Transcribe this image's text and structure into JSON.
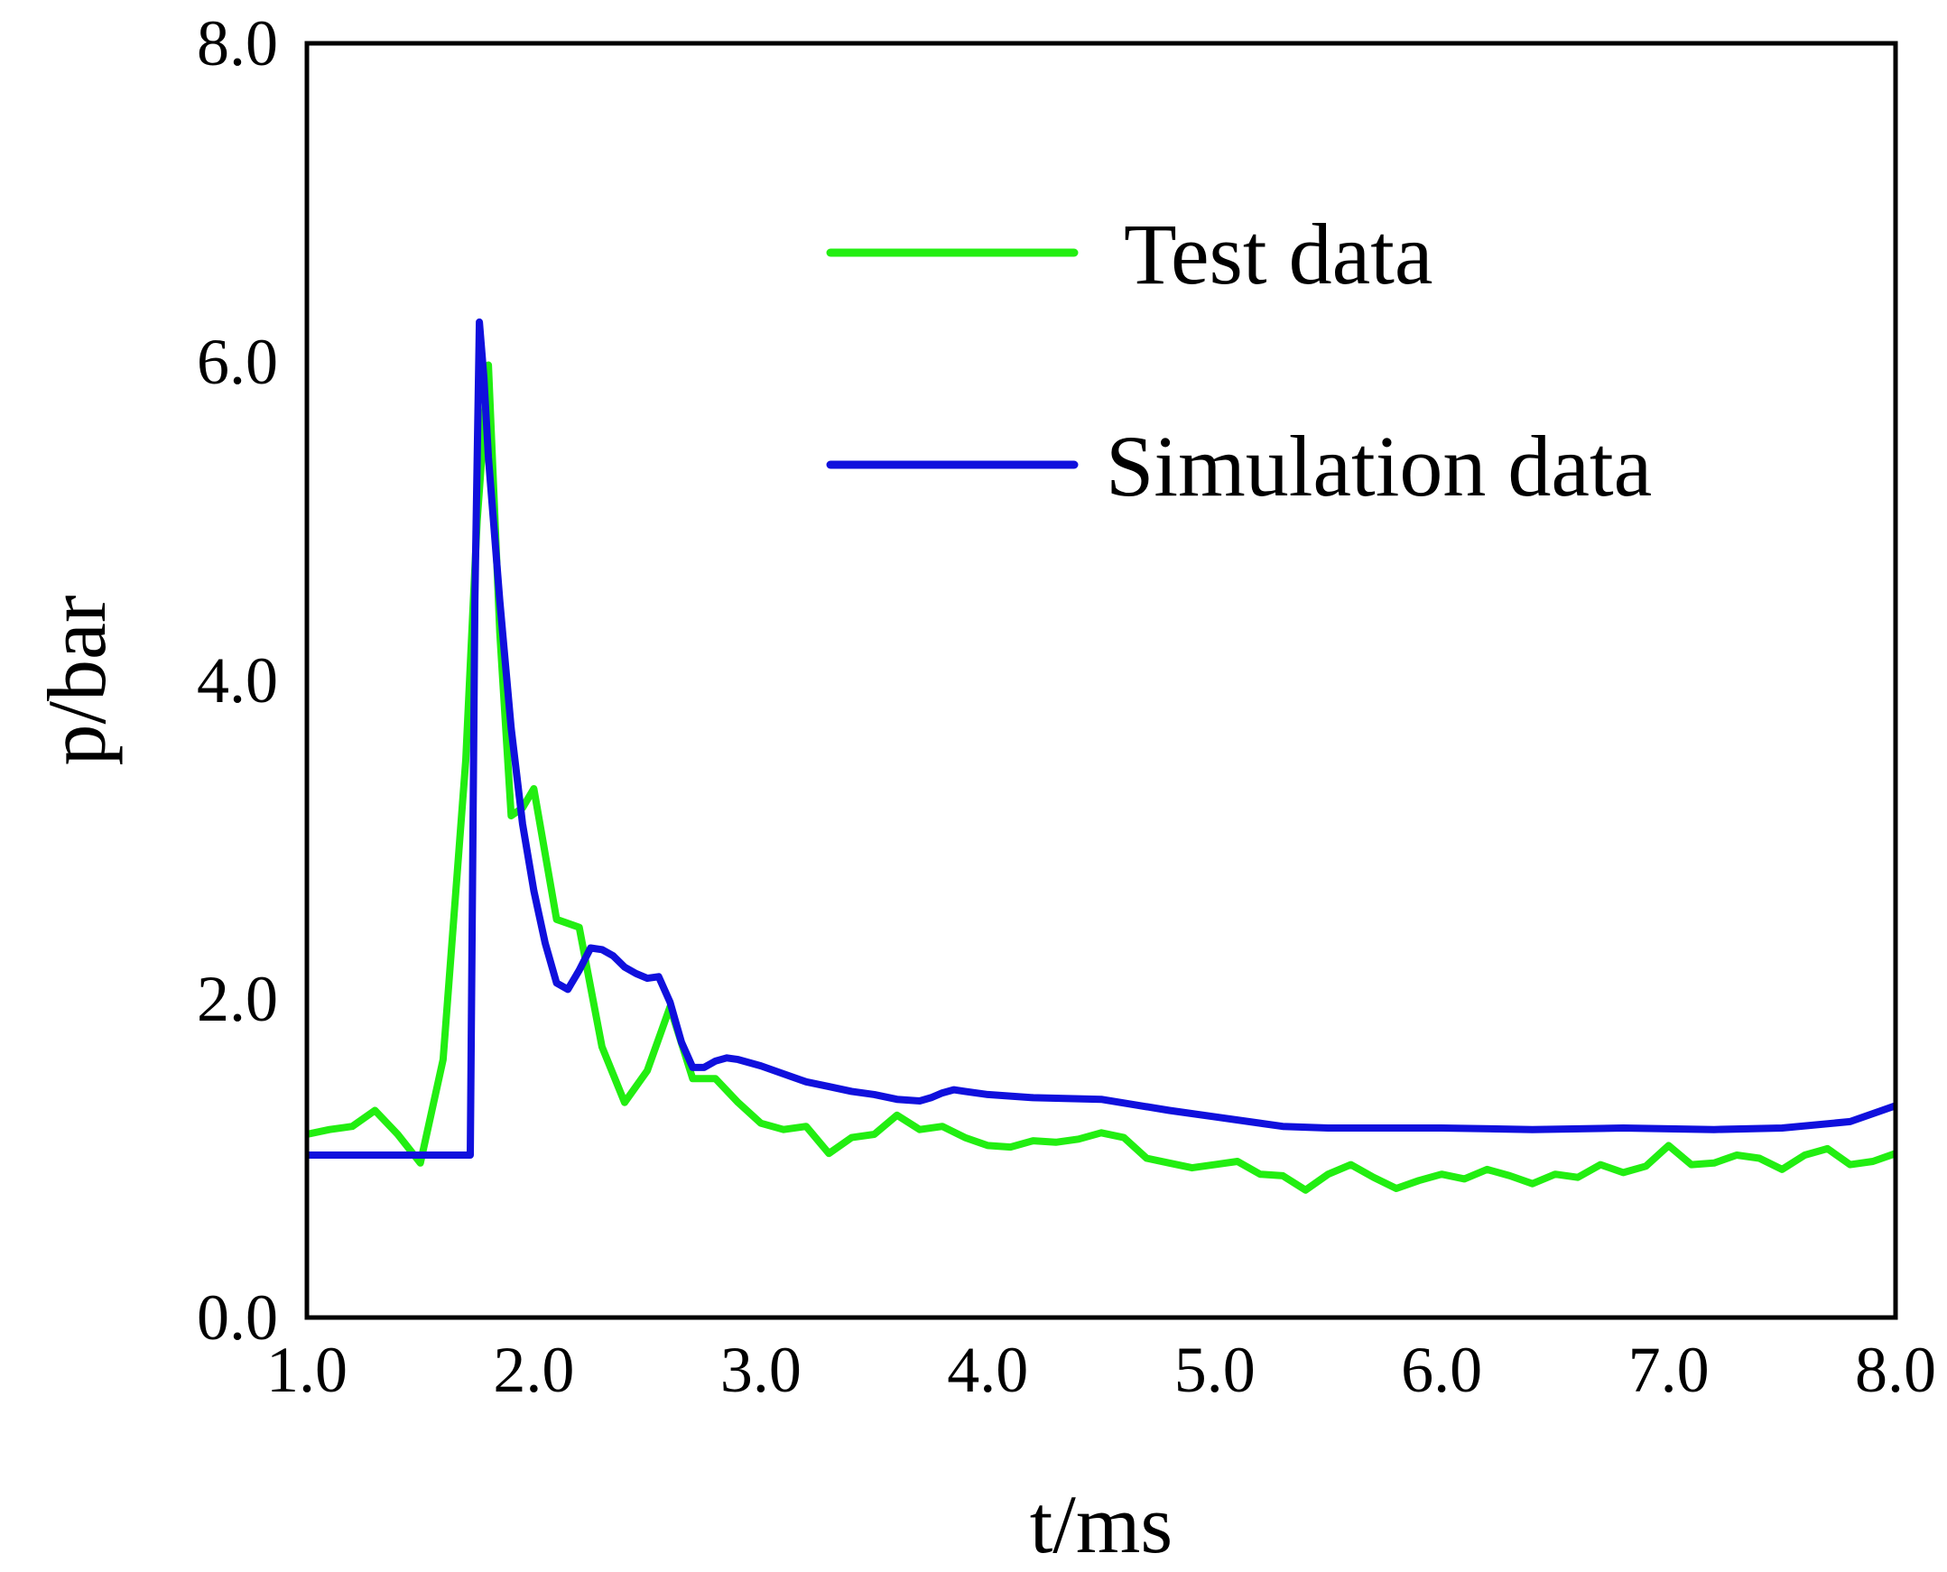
{
  "chart_data": {
    "type": "line",
    "title": "",
    "xlabel": "t/ms",
    "ylabel": "p/bar",
    "xlim": [
      1.0,
      8.0
    ],
    "ylim": [
      0.0,
      8.0
    ],
    "xticks": [
      "1.0",
      "2.0",
      "3.0",
      "4.0",
      "5.0",
      "6.0",
      "7.0",
      "8.0"
    ],
    "yticks": [
      "0.0",
      "2.0",
      "4.0",
      "6.0",
      "8.0"
    ],
    "grid": false,
    "legend_position": "top-right",
    "series": [
      {
        "name": "Test data",
        "color": "#22ee11",
        "x": [
          1.0,
          1.1,
          1.2,
          1.3,
          1.4,
          1.5,
          1.6,
          1.7,
          1.75,
          1.8,
          1.85,
          1.9,
          1.95,
          2.0,
          2.1,
          2.2,
          2.3,
          2.4,
          2.5,
          2.6,
          2.7,
          2.8,
          2.9,
          3.0,
          3.1,
          3.2,
          3.3,
          3.4,
          3.5,
          3.6,
          3.7,
          3.8,
          3.9,
          4.0,
          4.1,
          4.2,
          4.3,
          4.4,
          4.5,
          4.6,
          4.7,
          4.8,
          4.9,
          5.0,
          5.1,
          5.2,
          5.3,
          5.4,
          5.5,
          5.6,
          5.7,
          5.8,
          5.9,
          6.0,
          6.1,
          6.2,
          6.3,
          6.4,
          6.5,
          6.6,
          6.7,
          6.8,
          6.9,
          7.0,
          7.1,
          7.2,
          7.3,
          7.4,
          7.5,
          7.6,
          7.7,
          7.8,
          7.9,
          8.0
        ],
        "y": [
          1.15,
          1.18,
          1.2,
          1.3,
          1.15,
          0.97,
          1.62,
          3.5,
          5.0,
          5.98,
          4.3,
          3.15,
          3.2,
          3.32,
          2.5,
          2.45,
          1.7,
          1.35,
          1.55,
          1.95,
          1.5,
          1.5,
          1.35,
          1.22,
          1.18,
          1.2,
          1.03,
          1.13,
          1.15,
          1.27,
          1.18,
          1.2,
          1.13,
          1.08,
          1.07,
          1.11,
          1.1,
          1.12,
          1.16,
          1.13,
          1.0,
          0.97,
          0.94,
          0.96,
          0.98,
          0.9,
          0.89,
          0.8,
          0.9,
          0.96,
          0.88,
          0.81,
          0.86,
          0.9,
          0.87,
          0.93,
          0.89,
          0.84,
          0.9,
          0.88,
          0.96,
          0.91,
          0.95,
          1.08,
          0.96,
          0.97,
          1.02,
          1.0,
          0.93,
          1.02,
          1.06,
          0.96,
          0.98,
          1.03
        ]
      },
      {
        "name": "Simulation data",
        "color": "#1010dd",
        "x": [
          1.0,
          1.5,
          1.72,
          1.74,
          1.76,
          1.78,
          1.8,
          1.85,
          1.9,
          1.95,
          2.0,
          2.05,
          2.1,
          2.15,
          2.2,
          2.25,
          2.3,
          2.35,
          2.4,
          2.45,
          2.5,
          2.55,
          2.6,
          2.65,
          2.7,
          2.75,
          2.8,
          2.85,
          2.9,
          2.95,
          3.0,
          3.1,
          3.2,
          3.3,
          3.4,
          3.5,
          3.6,
          3.7,
          3.75,
          3.8,
          3.85,
          3.9,
          4.0,
          4.2,
          4.5,
          4.8,
          5.0,
          5.3,
          5.5,
          6.0,
          6.4,
          6.8,
          7.2,
          7.5,
          7.8,
          8.0
        ],
        "y": [
          1.02,
          1.02,
          1.02,
          4.5,
          6.25,
          5.9,
          5.4,
          4.5,
          3.7,
          3.1,
          2.68,
          2.35,
          2.1,
          2.06,
          2.18,
          2.32,
          2.31,
          2.27,
          2.2,
          2.16,
          2.13,
          2.14,
          1.98,
          1.73,
          1.57,
          1.57,
          1.61,
          1.63,
          1.62,
          1.6,
          1.58,
          1.53,
          1.48,
          1.45,
          1.42,
          1.4,
          1.37,
          1.36,
          1.38,
          1.41,
          1.43,
          1.42,
          1.4,
          1.38,
          1.37,
          1.3,
          1.26,
          1.2,
          1.19,
          1.19,
          1.18,
          1.19,
          1.18,
          1.19,
          1.23,
          1.33
        ]
      }
    ]
  }
}
